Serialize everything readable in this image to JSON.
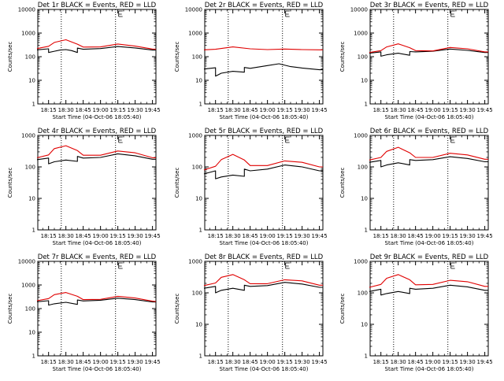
{
  "figure": {
    "colors": {
      "events": "#000000",
      "lld": "#e00000",
      "axes": "#000000",
      "background": "#ffffff"
    }
  },
  "chart_data": [
    {
      "type": "line",
      "title": "Det 1r BLACK = Events, RED = LLD",
      "xlabel": "Start Time (04-Oct-06 18:05:40)",
      "ylabel": "Counts/sec",
      "y_scale": "log",
      "ylim": [
        1,
        10000
      ],
      "ytick_labels": [
        "1",
        "10",
        "100",
        "1000",
        "10000"
      ],
      "xtick_labels": [
        "18:15",
        "18:30",
        "18:45",
        "19:00",
        "19:15",
        "19:30",
        "19:45"
      ],
      "xlim": [
        "18:05:40",
        "19:48:00"
      ],
      "marker_lines": [
        "18:26",
        "19:13"
      ],
      "series": [
        {
          "name": "Events",
          "color": "#000000",
          "x": [
            "18:05",
            "18:15",
            "18:15",
            "18:20",
            "18:25",
            "18:30",
            "18:35",
            "18:40",
            "18:40",
            "18:45",
            "19:00",
            "19:15",
            "19:30",
            "19:45",
            "19:48"
          ],
          "y": [
            195,
            215,
            150,
            170,
            190,
            200,
            180,
            150,
            230,
            205,
            220,
            270,
            235,
            190,
            190
          ]
        },
        {
          "name": "LLD",
          "color": "#e00000",
          "x": [
            "18:05",
            "18:15",
            "18:20",
            "18:30",
            "18:40",
            "18:45",
            "19:00",
            "19:15",
            "19:30",
            "19:45",
            "19:48"
          ],
          "y": [
            220,
            275,
            400,
            520,
            340,
            255,
            260,
            345,
            280,
            210,
            205
          ]
        }
      ]
    },
    {
      "type": "line",
      "title": "Det 2r BLACK = Events, RED = LLD",
      "xlabel": "Start Time (04-Oct-06 18:05:40)",
      "ylabel": "Counts/sec",
      "y_scale": "log",
      "ylim": [
        1,
        10000
      ],
      "ytick_labels": [
        "1",
        "10",
        "100",
        "1000",
        "10000"
      ],
      "xtick_labels": [
        "18:15",
        "18:30",
        "18:45",
        "19:00",
        "19:15",
        "19:30",
        "19:45"
      ],
      "xlim": [
        "18:05:40",
        "19:48:00"
      ],
      "marker_lines": [
        "18:26",
        "19:13"
      ],
      "series": [
        {
          "name": "Events",
          "color": "#000000",
          "x": [
            "18:05",
            "18:15",
            "18:15",
            "18:20",
            "18:30",
            "18:40",
            "18:40",
            "18:45",
            "19:00",
            "19:10",
            "19:20",
            "19:30",
            "19:45",
            "19:48"
          ],
          "y": [
            30,
            34,
            15,
            20,
            24,
            22,
            35,
            32,
            42,
            50,
            38,
            33,
            28,
            28
          ]
        },
        {
          "name": "LLD",
          "color": "#e00000",
          "x": [
            "18:05",
            "18:15",
            "18:30",
            "18:45",
            "19:00",
            "19:15",
            "19:30",
            "19:45",
            "19:48"
          ],
          "y": [
            195,
            205,
            260,
            215,
            200,
            210,
            200,
            195,
            195
          ]
        }
      ]
    },
    {
      "type": "line",
      "title": "Det 3r BLACK = Events, RED = LLD",
      "xlabel": "Start Time (04-Oct-06 18:05:40)",
      "ylabel": "Counts/sec",
      "y_scale": "log",
      "ylim": [
        1,
        10000
      ],
      "ytick_labels": [
        "1",
        "10",
        "100",
        "1000",
        "10000"
      ],
      "xtick_labels": [
        "18:15",
        "18:30",
        "18:45",
        "19:00",
        "19:15",
        "19:30",
        "19:45"
      ],
      "xlim": [
        "18:05:40",
        "19:48:00"
      ],
      "marker_lines": [
        "18:26",
        "19:13"
      ],
      "series": [
        {
          "name": "Events",
          "color": "#000000",
          "x": [
            "18:05",
            "18:15",
            "18:15",
            "18:20",
            "18:30",
            "18:40",
            "18:40",
            "18:45",
            "19:00",
            "19:15",
            "19:30",
            "19:45",
            "19:48"
          ],
          "y": [
            140,
            160,
            105,
            120,
            140,
            115,
            165,
            160,
            170,
            210,
            185,
            150,
            150
          ]
        },
        {
          "name": "LLD",
          "color": "#e00000",
          "x": [
            "18:05",
            "18:15",
            "18:20",
            "18:30",
            "18:40",
            "18:45",
            "19:00",
            "19:15",
            "19:30",
            "19:45",
            "19:48"
          ],
          "y": [
            150,
            180,
            260,
            350,
            240,
            180,
            175,
            245,
            215,
            160,
            160
          ]
        }
      ]
    },
    {
      "type": "line",
      "title": "Det 4r BLACK = Events, RED = LLD",
      "xlabel": "Start Time (04-Oct-06 18:05:40)",
      "ylabel": "Counts/sec",
      "y_scale": "log",
      "ylim": [
        1,
        1000
      ],
      "ytick_labels": [
        "1",
        "10",
        "100",
        "1000"
      ],
      "xtick_labels": [
        "18:15",
        "18:30",
        "18:45",
        "19:00",
        "19:15",
        "19:30",
        "19:45"
      ],
      "xlim": [
        "18:05:40",
        "19:48:00"
      ],
      "marker_lines": [
        "18:26",
        "19:13"
      ],
      "series": [
        {
          "name": "Events",
          "color": "#000000",
          "x": [
            "18:05",
            "18:15",
            "18:15",
            "18:20",
            "18:30",
            "18:40",
            "18:40",
            "18:45",
            "19:00",
            "19:15",
            "19:30",
            "19:45",
            "19:48"
          ],
          "y": [
            170,
            190,
            125,
            145,
            165,
            150,
            215,
            190,
            200,
            260,
            225,
            175,
            175
          ]
        },
        {
          "name": "LLD",
          "color": "#e00000",
          "x": [
            "18:05",
            "18:15",
            "18:20",
            "18:30",
            "18:40",
            "18:45",
            "19:00",
            "19:15",
            "19:30",
            "19:45",
            "19:48"
          ],
          "y": [
            195,
            240,
            380,
            470,
            330,
            235,
            235,
            320,
            280,
            195,
            195
          ]
        }
      ]
    },
    {
      "type": "line",
      "title": "Det 5r BLACK = Events, RED = LLD",
      "xlabel": "Start Time (04-Oct-06 18:05:40)",
      "ylabel": "Counts/sec",
      "y_scale": "log",
      "ylim": [
        1,
        1000
      ],
      "ytick_labels": [
        "1",
        "10",
        "100",
        "1000"
      ],
      "xtick_labels": [
        "18:15",
        "18:30",
        "18:45",
        "19:00",
        "19:15",
        "19:30",
        "19:45"
      ],
      "xlim": [
        "18:05:40",
        "19:48:00"
      ],
      "marker_lines": [
        "18:26",
        "19:13"
      ],
      "series": [
        {
          "name": "Events",
          "color": "#000000",
          "x": [
            "18:05",
            "18:15",
            "18:15",
            "18:20",
            "18:30",
            "18:40",
            "18:40",
            "18:45",
            "19:00",
            "19:15",
            "19:30",
            "19:45",
            "19:48"
          ],
          "y": [
            60,
            75,
            42,
            48,
            55,
            50,
            85,
            75,
            85,
            115,
            100,
            75,
            75
          ]
        },
        {
          "name": "LLD",
          "color": "#e00000",
          "x": [
            "18:05",
            "18:15",
            "18:20",
            "18:30",
            "18:40",
            "18:45",
            "19:00",
            "19:15",
            "19:30",
            "19:45",
            "19:48"
          ],
          "y": [
            80,
            105,
            170,
            250,
            165,
            110,
            110,
            155,
            140,
            100,
            100
          ]
        }
      ]
    },
    {
      "type": "line",
      "title": "Det 6r BLACK = Events, RED = LLD",
      "xlabel": "Start Time (04-Oct-06 18:05:40)",
      "ylabel": "Counts/sec",
      "y_scale": "log",
      "ylim": [
        1,
        1000
      ],
      "ytick_labels": [
        "1",
        "10",
        "100",
        "1000"
      ],
      "xtick_labels": [
        "18:15",
        "18:30",
        "18:45",
        "19:00",
        "19:15",
        "19:30",
        "19:45"
      ],
      "xlim": [
        "18:05:40",
        "19:48:00"
      ],
      "marker_lines": [
        "18:26",
        "19:13"
      ],
      "series": [
        {
          "name": "Events",
          "color": "#000000",
          "x": [
            "18:05",
            "18:15",
            "18:15",
            "18:20",
            "18:30",
            "18:40",
            "18:40",
            "18:45",
            "19:00",
            "19:15",
            "19:30",
            "19:45",
            "19:48"
          ],
          "y": [
            140,
            160,
            100,
            115,
            135,
            115,
            170,
            160,
            170,
            210,
            185,
            145,
            145
          ]
        },
        {
          "name": "LLD",
          "color": "#e00000",
          "x": [
            "18:05",
            "18:15",
            "18:20",
            "18:30",
            "18:40",
            "18:45",
            "19:00",
            "19:15",
            "19:30",
            "19:45",
            "19:48"
          ],
          "y": [
            165,
            200,
            310,
            420,
            280,
            200,
            200,
            270,
            240,
            175,
            175
          ]
        }
      ]
    },
    {
      "type": "line",
      "title": "Det 7r BLACK = Events, RED = LLD",
      "xlabel": "Start Time (04-Oct-06 18:05:40)",
      "ylabel": "Counts/sec",
      "y_scale": "log",
      "ylim": [
        1,
        10000
      ],
      "ytick_labels": [
        "1",
        "10",
        "100",
        "1000",
        "10000"
      ],
      "xtick_labels": [
        "18:15",
        "18:30",
        "18:45",
        "19:00",
        "19:15",
        "19:30",
        "19:45"
      ],
      "xlim": [
        "18:05:40",
        "19:48:00"
      ],
      "marker_lines": [
        "18:26",
        "19:13"
      ],
      "series": [
        {
          "name": "Events",
          "color": "#000000",
          "x": [
            "18:05",
            "18:15",
            "18:15",
            "18:20",
            "18:30",
            "18:40",
            "18:40",
            "18:45",
            "19:00",
            "19:15",
            "19:30",
            "19:45",
            "19:48"
          ],
          "y": [
            195,
            215,
            140,
            160,
            185,
            150,
            230,
            210,
            225,
            275,
            240,
            190,
            190
          ]
        },
        {
          "name": "LLD",
          "color": "#e00000",
          "x": [
            "18:05",
            "18:15",
            "18:20",
            "18:30",
            "18:40",
            "18:45",
            "19:00",
            "19:15",
            "19:30",
            "19:45",
            "19:48"
          ],
          "y": [
            215,
            265,
            390,
            480,
            330,
            240,
            245,
            330,
            280,
            205,
            200
          ]
        }
      ]
    },
    {
      "type": "line",
      "title": "Det 8r BLACK = Events, RED = LLD",
      "xlabel": "Start Time (04-Oct-06 18:05:40)",
      "ylabel": "Counts/sec",
      "y_scale": "log",
      "ylim": [
        1,
        1000
      ],
      "ytick_labels": [
        "1",
        "10",
        "100",
        "1000"
      ],
      "xtick_labels": [
        "18:15",
        "18:30",
        "18:45",
        "19:00",
        "19:15",
        "19:30",
        "19:45"
      ],
      "xlim": [
        "18:05:40",
        "19:48:00"
      ],
      "marker_lines": [
        "18:26",
        "19:13"
      ],
      "series": [
        {
          "name": "Events",
          "color": "#000000",
          "x": [
            "18:05",
            "18:15",
            "18:15",
            "18:20",
            "18:30",
            "18:40",
            "18:40",
            "18:45",
            "19:00",
            "19:15",
            "19:30",
            "19:45",
            "19:48"
          ],
          "y": [
            140,
            160,
            100,
            120,
            140,
            120,
            175,
            160,
            170,
            215,
            190,
            150,
            150
          ]
        },
        {
          "name": "LLD",
          "color": "#e00000",
          "x": [
            "18:05",
            "18:15",
            "18:20",
            "18:30",
            "18:40",
            "18:45",
            "19:00",
            "19:15",
            "19:30",
            "19:45",
            "19:48"
          ],
          "y": [
            170,
            205,
            310,
            380,
            260,
            195,
            195,
            260,
            240,
            175,
            175
          ]
        }
      ]
    },
    {
      "type": "line",
      "title": "Det 9r BLACK = Events, RED = LLD",
      "xlabel": "Start Time (04-Oct-06 18:05:40)",
      "ylabel": "Counts/sec",
      "y_scale": "log",
      "ylim": [
        1,
        1000
      ],
      "ytick_labels": [
        "1",
        "10",
        "100",
        "1000"
      ],
      "xtick_labels": [
        "18:15",
        "18:30",
        "18:45",
        "19:00",
        "19:15",
        "19:30",
        "19:45"
      ],
      "xlim": [
        "18:05:40",
        "19:48:00"
      ],
      "marker_lines": [
        "18:26",
        "19:13"
      ],
      "series": [
        {
          "name": "Events",
          "color": "#000000",
          "x": [
            "18:05",
            "18:15",
            "18:15",
            "18:20",
            "18:30",
            "18:40",
            "18:40",
            "18:45",
            "19:00",
            "19:15",
            "19:30",
            "19:45",
            "19:48"
          ],
          "y": [
            110,
            130,
            85,
            95,
            110,
            95,
            140,
            130,
            140,
            175,
            155,
            120,
            120
          ]
        },
        {
          "name": "LLD",
          "color": "#e00000",
          "x": [
            "18:05",
            "18:15",
            "18:20",
            "18:30",
            "18:40",
            "18:45",
            "19:00",
            "19:15",
            "19:30",
            "19:45",
            "19:48"
          ],
          "y": [
            150,
            185,
            290,
            380,
            260,
            180,
            185,
            250,
            225,
            160,
            160
          ]
        }
      ]
    }
  ]
}
